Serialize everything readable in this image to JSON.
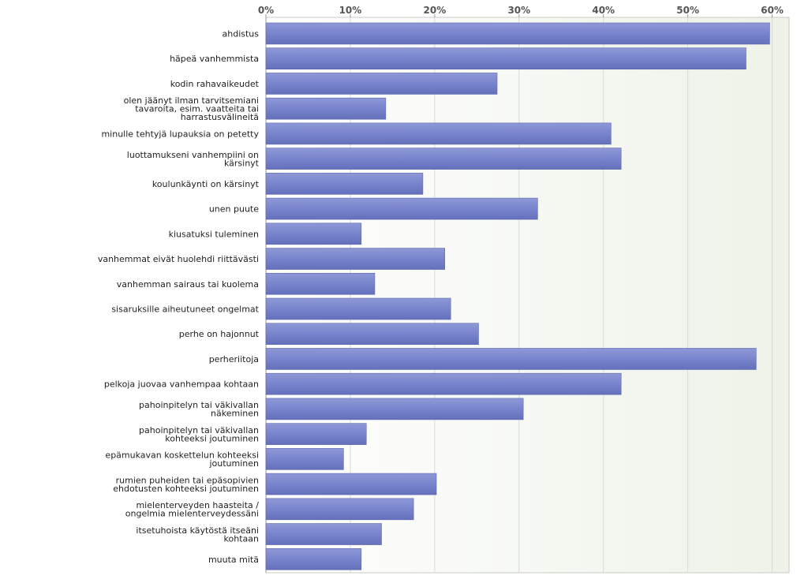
{
  "chart_data": {
    "type": "bar",
    "orientation": "horizontal",
    "title": "",
    "xlabel": "",
    "ylabel": "",
    "xlim": [
      0,
      62
    ],
    "x_tick_values": [
      0,
      10,
      20,
      30,
      40,
      50,
      60
    ],
    "x_tick_labels": [
      "0%",
      "10%",
      "20%",
      "30%",
      "40%",
      "50%",
      "60%"
    ],
    "grid": true,
    "legend": "none",
    "bar_color": "#7884cc",
    "categories": [
      [
        "ahdistus"
      ],
      [
        "häpeä vanhemmista"
      ],
      [
        "kodin rahavaikeudet"
      ],
      [
        "olen jäänyt ilman tarvitsemiani",
        "tavaroita, esim. vaatteita tai",
        "harrastusvälineitä"
      ],
      [
        "minulle tehtyjä lupauksia on petetty"
      ],
      [
        "luottamukseni vanhempiini on",
        "kärsinyt"
      ],
      [
        "koulunkäynti on kärsinyt"
      ],
      [
        "unen puute"
      ],
      [
        "kiusatuksi tuleminen"
      ],
      [
        "vanhemmat eivät huolehdi riittävästi"
      ],
      [
        "vanhemman sairaus tai kuolema"
      ],
      [
        "sisaruksille aiheutuneet ongelmat"
      ],
      [
        "perhe on hajonnut"
      ],
      [
        "perheriitoja"
      ],
      [
        "pelkoja juovaa vanhempaa kohtaan"
      ],
      [
        "pahoinpitelyn tai väkivallan",
        "näkeminen"
      ],
      [
        "pahoinpitelyn tai väkivallan",
        "kohteeksi joutuminen"
      ],
      [
        "epämukavan koskettelun kohteeksi",
        "joutuminen"
      ],
      [
        "rumien puheiden tai epäsopivien",
        "ehdotusten kohteeksi joutuminen"
      ],
      [
        "mielenterveyden haasteita /",
        "ongelmia mielenterveydessäni"
      ],
      [
        "itsetuhoista käytöstä itseäni",
        "kohtaan"
      ],
      [
        "muuta mitä"
      ]
    ],
    "values": [
      59.7,
      56.9,
      27.4,
      14.2,
      40.9,
      42.1,
      18.6,
      32.2,
      11.3,
      21.2,
      12.9,
      21.9,
      25.2,
      58.1,
      42.1,
      30.5,
      11.9,
      9.2,
      20.2,
      17.5,
      13.7,
      11.3
    ]
  }
}
